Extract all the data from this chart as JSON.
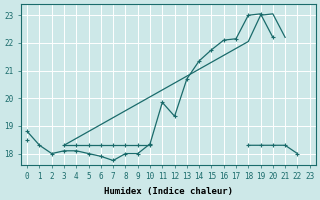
{
  "xlabel": "Humidex (Indice chaleur)",
  "background_color": "#cde8e8",
  "line_color": "#1a6b6b",
  "grid_color": "#b0d0d0",
  "x_all": [
    0,
    1,
    2,
    3,
    4,
    5,
    6,
    7,
    8,
    9,
    10,
    11,
    12,
    13,
    14,
    15,
    16,
    17,
    18,
    19,
    20,
    21,
    22,
    23
  ],
  "y_zigzag": [
    18.8,
    18.3,
    18.0,
    18.1,
    18.1,
    18.0,
    17.9,
    17.75,
    18.0,
    18.0,
    18.35,
    19.85,
    19.35,
    20.7,
    21.35,
    21.75,
    22.1,
    22.15,
    23.0,
    23.05,
    22.2,
    null,
    null,
    null
  ],
  "y_flat": [
    18.5,
    null,
    null,
    18.3,
    18.3,
    18.3,
    18.3,
    18.3,
    18.3,
    18.3,
    18.3,
    null,
    null,
    null,
    null,
    null,
    null,
    null,
    18.3,
    18.3,
    18.3,
    18.3,
    18.0,
    null
  ],
  "y_diag": [
    null,
    null,
    null,
    18.3,
    18.55,
    18.8,
    19.05,
    19.3,
    19.55,
    19.8,
    20.05,
    20.3,
    20.55,
    20.8,
    21.05,
    21.3,
    21.55,
    21.8,
    22.05,
    23.0,
    23.05,
    22.2,
    null,
    null
  ],
  "ylim_min": 17.6,
  "ylim_max": 23.4,
  "xlim_min": -0.5,
  "xlim_max": 23.5,
  "yticks": [
    18,
    19,
    20,
    21,
    22,
    23
  ],
  "xticks": [
    0,
    1,
    2,
    3,
    4,
    5,
    6,
    7,
    8,
    9,
    10,
    11,
    12,
    13,
    14,
    15,
    16,
    17,
    18,
    19,
    20,
    21,
    22,
    23
  ],
  "tick_fontsize": 5.5,
  "label_fontsize": 6.5
}
